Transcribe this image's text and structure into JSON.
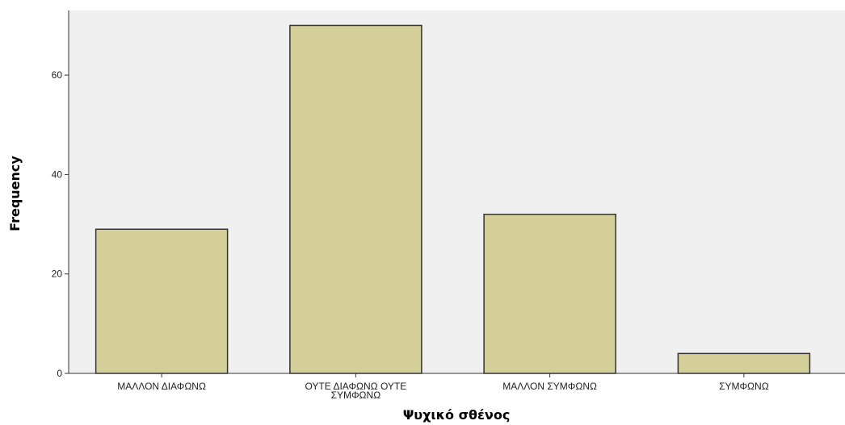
{
  "chart_data": {
    "type": "bar",
    "title": "",
    "xlabel": "Ψυχικό σθένος",
    "ylabel": "Frequency",
    "categories": [
      [
        "ΜΑΛΛΟΝ ΔΙΑΦΩΝΩ"
      ],
      [
        "ΟΥΤΕ ΔΙΑΦΩΝΩ ΟΥΤΕ",
        "ΣΥΜΦΩΝΩ"
      ],
      [
        "ΜΑΛΛΟΝ ΣΥΜΦΩΝΩ"
      ],
      [
        "ΣΥΜΦΩΝΩ"
      ]
    ],
    "values": [
      29,
      70,
      32,
      4
    ],
    "ylim": [
      0,
      73
    ],
    "yticks": [
      0,
      20,
      40,
      60
    ],
    "grid": false,
    "colors": {
      "bar_fill": "#d4ce98",
      "bar_stroke": "#333333",
      "plot_bg": "#f0f0f0",
      "axis": "#333333"
    }
  }
}
